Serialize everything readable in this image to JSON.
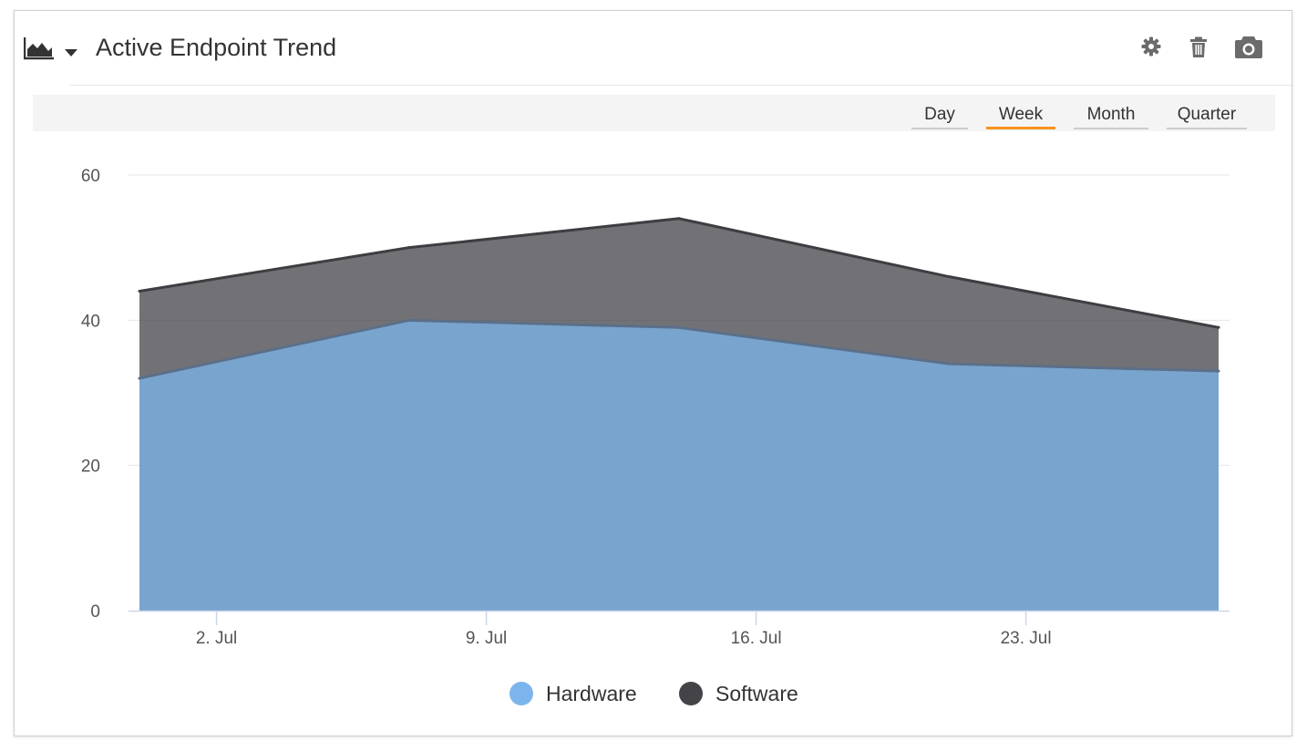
{
  "header": {
    "title": "Active Endpoint Trend",
    "chart_type_icon": "area-chart-icon",
    "dropdown_icon": "caret-down-icon",
    "tools": [
      {
        "name": "gear-icon"
      },
      {
        "name": "trash-icon"
      },
      {
        "name": "camera-icon"
      }
    ]
  },
  "range": {
    "options": [
      "Day",
      "Week",
      "Month",
      "Quarter"
    ],
    "selected": "Week",
    "accent_color": "#f7931d"
  },
  "chart_data": {
    "type": "area",
    "stacking": "none",
    "x": [
      "2018-06-30",
      "2018-07-07",
      "2018-07-14",
      "2018-07-21",
      "2018-07-28"
    ],
    "x_ticks": [
      "2. Jul",
      "9. Jul",
      "16. Jul",
      "23. Jul"
    ],
    "x_tick_dates": [
      "2018-07-02",
      "2018-07-09",
      "2018-07-16",
      "2018-07-23"
    ],
    "ylim": [
      0,
      60
    ],
    "y_ticks": [
      0,
      20,
      40,
      60
    ],
    "grid": true,
    "legend_position": "bottom-center",
    "series": [
      {
        "name": "Software",
        "values": [
          44,
          50,
          54,
          46,
          39
        ],
        "color": "#434348"
      },
      {
        "name": "Hardware",
        "values": [
          32,
          40,
          39,
          34,
          33
        ],
        "color": "#7cb5ec"
      }
    ],
    "title": "",
    "xlabel": "",
    "ylabel": ""
  }
}
